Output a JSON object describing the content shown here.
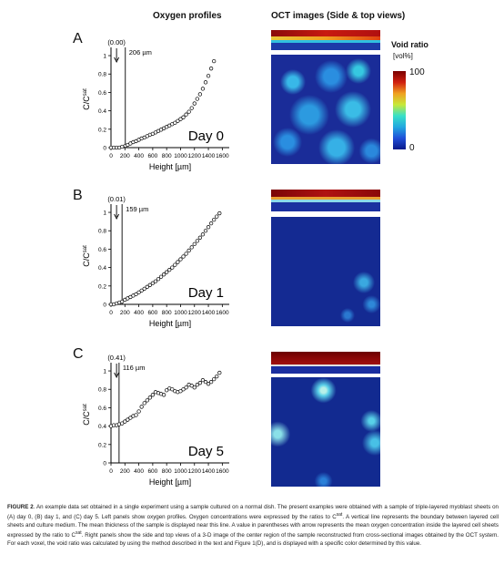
{
  "headers": {
    "left": "Oxygen profiles",
    "right": "OCT images (Side & top views)"
  },
  "colorbar": {
    "title": "Void ratio",
    "unit": "[vol%]",
    "max_label": "100",
    "min_label": "0",
    "colors": [
      "#0a1a8a",
      "#1f4ed8",
      "#22a8e0",
      "#38e0c8",
      "#c8e838",
      "#f0a020",
      "#d02010",
      "#7a0000"
    ]
  },
  "panels": [
    {
      "letter": "A",
      "mean_label": "(0.00)",
      "thickness_label": "206 µm",
      "day_label": "Day 0",
      "ylabel_main": "C/C",
      "ylabel_sup": "sat",
      "xlabel": "Height [µm]",
      "x_ticks": [
        "0",
        "200",
        "400",
        "600",
        "800",
        "1000",
        "1200",
        "1400",
        "1600"
      ],
      "y_ticks": [
        "0",
        "0.2",
        "0.4",
        "0.6",
        "0.8",
        "1"
      ]
    },
    {
      "letter": "B",
      "mean_label": "(0.01)",
      "thickness_label": "159 µm",
      "day_label": "Day 1",
      "ylabel_main": "C/C",
      "ylabel_sup": "sat",
      "xlabel": "Height [µm]",
      "x_ticks": [
        "0",
        "200",
        "400",
        "600",
        "800",
        "1000",
        "1200",
        "1400",
        "1600"
      ],
      "y_ticks": [
        "0",
        "0.2",
        "0.4",
        "0.6",
        "0.8",
        "1"
      ]
    },
    {
      "letter": "C",
      "mean_label": "(0.41)",
      "thickness_label": "116 µm",
      "day_label": "Day 5",
      "ylabel_main": "C/C",
      "ylabel_sup": "sat",
      "xlabel": "Height [µm]",
      "x_ticks": [
        "0",
        "200",
        "400",
        "600",
        "800",
        "1000",
        "1200",
        "1400",
        "1600"
      ],
      "y_ticks": [
        "0",
        "0.2",
        "0.4",
        "0.6",
        "0.8",
        "1"
      ]
    }
  ],
  "caption": {
    "lead": "FIGURE 2",
    "text": ". An example data set obtained in a single experiment using a sample cultured on a normal dish. The present examples were obtained with a sample of triple-layered myoblast sheets on (A) day 0, (B) day 1, and (C) day 5. Left panels show oxygen profiles. Oxygen concentrations were expressed by the ratios to C^sat. A vertical line represents the boundary between layered cell sheets and culture medium. The mean thickness of the sample is displayed near this line. A value in parentheses with arrow represents the mean oxygen concentration inside the layered cell sheets expressed by the ratio to C^sat. Right panels show the side and top views of a 3-D image of the center region of the sample reconstructed from cross-sectional images obtained by the OCT system. For each voxel, the void ratio was calculated by using the method described in the text and Figure 1(D), and is displayed with a specific color determined by this value."
  },
  "chart_data": [
    {
      "type": "scatter",
      "title": "",
      "xlabel": "Height [µm]",
      "ylabel": "C/Csat",
      "xlim": [
        0,
        1700
      ],
      "ylim": [
        0,
        1.05
      ],
      "boundary_x": 206,
      "series": [
        {
          "x": [
            0,
            40,
            80,
            120,
            160,
            206,
            240,
            280,
            320,
            360,
            400,
            440,
            480,
            520,
            560,
            600,
            640,
            680,
            720,
            760,
            800,
            840,
            880,
            920,
            960,
            1000,
            1040,
            1080,
            1120,
            1160,
            1200,
            1240,
            1280,
            1320,
            1360,
            1400,
            1440,
            1480
          ],
          "y": [
            0.0,
            0.0,
            0.0,
            0.0,
            0.01,
            0.02,
            0.03,
            0.045,
            0.06,
            0.07,
            0.085,
            0.1,
            0.11,
            0.125,
            0.14,
            0.15,
            0.165,
            0.18,
            0.195,
            0.21,
            0.225,
            0.24,
            0.255,
            0.27,
            0.29,
            0.31,
            0.33,
            0.36,
            0.39,
            0.43,
            0.48,
            0.53,
            0.58,
            0.64,
            0.71,
            0.78,
            0.86,
            0.94
          ]
        }
      ]
    },
    {
      "type": "scatter",
      "title": "",
      "xlabel": "Height [µm]",
      "ylabel": "C/Csat",
      "xlim": [
        0,
        1700
      ],
      "ylim": [
        0,
        1.05
      ],
      "boundary_x": 159,
      "series": [
        {
          "x": [
            0,
            40,
            80,
            120,
            159,
            200,
            240,
            280,
            320,
            360,
            400,
            440,
            480,
            520,
            560,
            600,
            640,
            680,
            720,
            760,
            800,
            840,
            880,
            920,
            960,
            1000,
            1040,
            1080,
            1120,
            1160,
            1200,
            1240,
            1280,
            1320,
            1360,
            1400,
            1440,
            1480,
            1520,
            1560
          ],
          "y": [
            0.0,
            0.0,
            0.01,
            0.02,
            0.03,
            0.05,
            0.065,
            0.08,
            0.095,
            0.11,
            0.13,
            0.15,
            0.17,
            0.19,
            0.21,
            0.23,
            0.25,
            0.275,
            0.3,
            0.325,
            0.35,
            0.375,
            0.4,
            0.43,
            0.46,
            0.49,
            0.52,
            0.55,
            0.585,
            0.62,
            0.655,
            0.69,
            0.725,
            0.76,
            0.8,
            0.84,
            0.88,
            0.92,
            0.955,
            0.99
          ]
        }
      ]
    },
    {
      "type": "scatter",
      "title": "",
      "xlabel": "Height [µm]",
      "ylabel": "C/Csat",
      "xlim": [
        0,
        1700
      ],
      "ylim": [
        0,
        1.05
      ],
      "boundary_x": 116,
      "series": [
        {
          "x": [
            0,
            40,
            80,
            116,
            160,
            200,
            240,
            280,
            320,
            360,
            400,
            440,
            480,
            520,
            560,
            600,
            640,
            680,
            720,
            760,
            800,
            840,
            880,
            920,
            960,
            1000,
            1040,
            1080,
            1120,
            1160,
            1200,
            1240,
            1280,
            1320,
            1360,
            1400,
            1440,
            1480,
            1520,
            1560
          ],
          "y": [
            0.4,
            0.41,
            0.41,
            0.42,
            0.43,
            0.45,
            0.47,
            0.49,
            0.51,
            0.52,
            0.56,
            0.61,
            0.65,
            0.68,
            0.71,
            0.74,
            0.77,
            0.76,
            0.75,
            0.74,
            0.79,
            0.81,
            0.8,
            0.78,
            0.77,
            0.78,
            0.8,
            0.82,
            0.85,
            0.84,
            0.82,
            0.85,
            0.87,
            0.9,
            0.88,
            0.86,
            0.88,
            0.91,
            0.94,
            0.98
          ]
        }
      ]
    }
  ]
}
